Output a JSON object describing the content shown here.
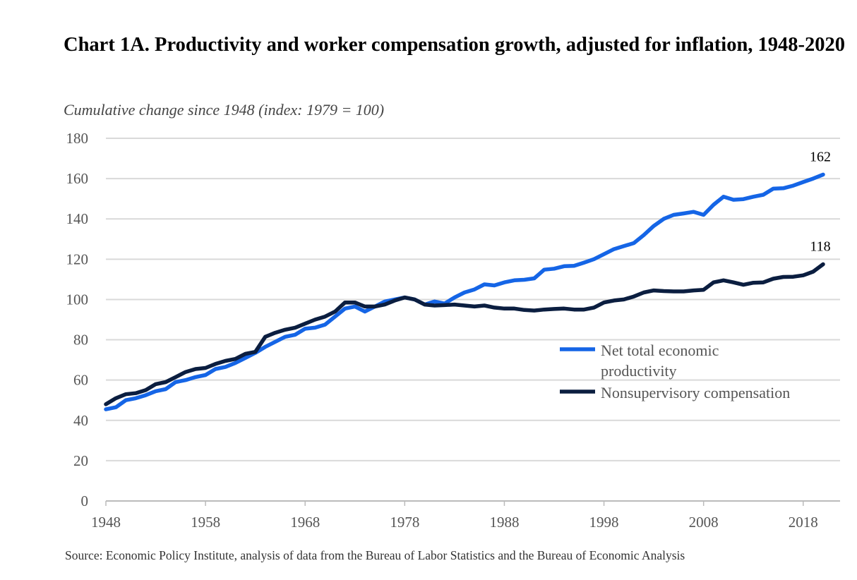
{
  "chart_data": {
    "type": "line",
    "title": "Chart 1A. Productivity and worker compensation growth, adjusted for inflation, 1948-2020",
    "subtitle": "Cumulative change since 1948 (index: 1979 = 100)",
    "source": "Source: Economic Policy Institute, analysis of data from the Bureau of Labor Statistics and the Bureau of Economic Analysis",
    "xlabel": "",
    "ylabel": "",
    "xlim": [
      1948,
      2020
    ],
    "ylim": [
      0,
      180
    ],
    "grid": true,
    "legend_position": "center-right",
    "y_ticks": [
      "0",
      "20",
      "40",
      "60",
      "80",
      "100",
      "120",
      "140",
      "160",
      "180"
    ],
    "x_ticks": [
      "1948",
      "1958",
      "1968",
      "1978",
      "1988",
      "1998",
      "2008",
      "2018"
    ],
    "x_start": 1948,
    "series": [
      {
        "name": "Net total economic productivity",
        "color": "#1565e6",
        "end_label": "162",
        "values": [
          45.5,
          46.5,
          50,
          51,
          52.5,
          54.5,
          55.5,
          59,
          60,
          61.5,
          62.5,
          65.5,
          66.5,
          68.5,
          71,
          73.5,
          76.5,
          79,
          81.5,
          82.5,
          85.5,
          86,
          87.5,
          91.5,
          95.5,
          96.5,
          94,
          96.5,
          99,
          100,
          101,
          100,
          97.5,
          99,
          98,
          101,
          103.5,
          105,
          107.5,
          107,
          108.5,
          109.5,
          109.8,
          110.5,
          114.8,
          115.3,
          116.5,
          116.7,
          118.3,
          120,
          122.5,
          125,
          126.5,
          128,
          132,
          136.5,
          140,
          142,
          142.7,
          143.5,
          142,
          147,
          151,
          149.5,
          149.8,
          151,
          152,
          155,
          155.2,
          156.5,
          158.3,
          160,
          162
        ]
      },
      {
        "name": "Nonsupervisory compensation",
        "color": "#0b1e40",
        "end_label": "118",
        "values": [
          48,
          51,
          53,
          53.5,
          55,
          58,
          59,
          61.5,
          64,
          65.5,
          66,
          68,
          69.5,
          70.5,
          73,
          74,
          81.5,
          83.5,
          85,
          86,
          88,
          90,
          91.5,
          94,
          98.5,
          98.5,
          96.5,
          96.5,
          97.5,
          99.5,
          101,
          100,
          97.5,
          97,
          97.2,
          97.5,
          97,
          96.5,
          97,
          96,
          95.5,
          95.5,
          94.8,
          94.5,
          95,
          95.3,
          95.5,
          95,
          95,
          96,
          98.5,
          99.5,
          100,
          101.5,
          103.5,
          104.5,
          104.2,
          104,
          104,
          104.5,
          104.8,
          108.5,
          109.5,
          108.5,
          107.3,
          108.3,
          108.5,
          110.3,
          111.2,
          111.3,
          112,
          113.8,
          117.5
        ]
      }
    ]
  }
}
